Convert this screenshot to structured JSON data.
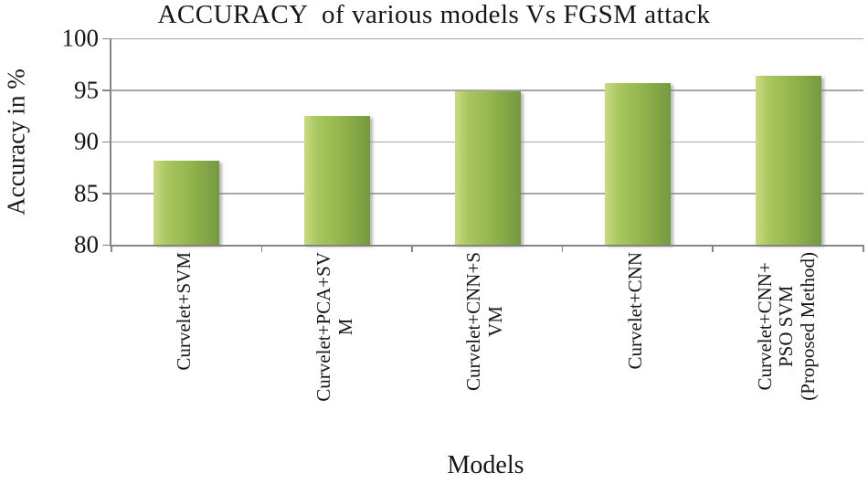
{
  "chart_data": {
    "type": "bar",
    "title": "ACCURACY  of various models Vs FGSM attack",
    "xlabel": "Models",
    "ylabel": "Accuracy in %",
    "categories": [
      "Curvelet+SVM",
      "Curvelet+PCA+SV\nM",
      "Curvelet+CNN+S\nVM",
      "Curvelet+CNN",
      "Curvelet+CNN+\nPSO SVM\n(Proposed Method)"
    ],
    "values": [
      88.1,
      92.5,
      94.9,
      95.7,
      96.4
    ],
    "ylim": [
      80,
      100
    ],
    "yticks": [
      80,
      85,
      90,
      95,
      100
    ],
    "grid": "horizontal",
    "legend": "none",
    "bar_color_light": "#c9da85",
    "bar_color_dark": "#76993e",
    "gridline_color": "#a8a8a8",
    "axis_color": "#868686"
  }
}
